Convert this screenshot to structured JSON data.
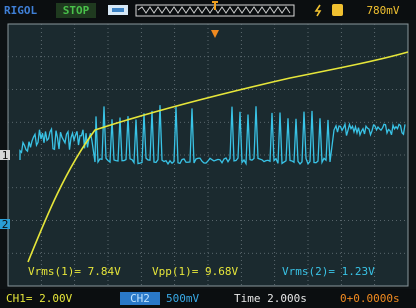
{
  "header": {
    "brand": "RIGOL",
    "status": "STOP",
    "trigger_level": "780mV"
  },
  "measurements": [
    {
      "label": "Vrms(1)= 7.84V"
    },
    {
      "label": "Vpp(1)= 9.68V"
    },
    {
      "label": "Vrms(2)= 1.23V"
    }
  ],
  "channel_markers": [
    "1",
    "2"
  ],
  "footer": {
    "ch1": "CH1= 2.00V",
    "ch2_badge": "CH2",
    "ch2_scale": "500mV",
    "time": "Time 2.000s",
    "offset": "0+0.0000s"
  }
}
